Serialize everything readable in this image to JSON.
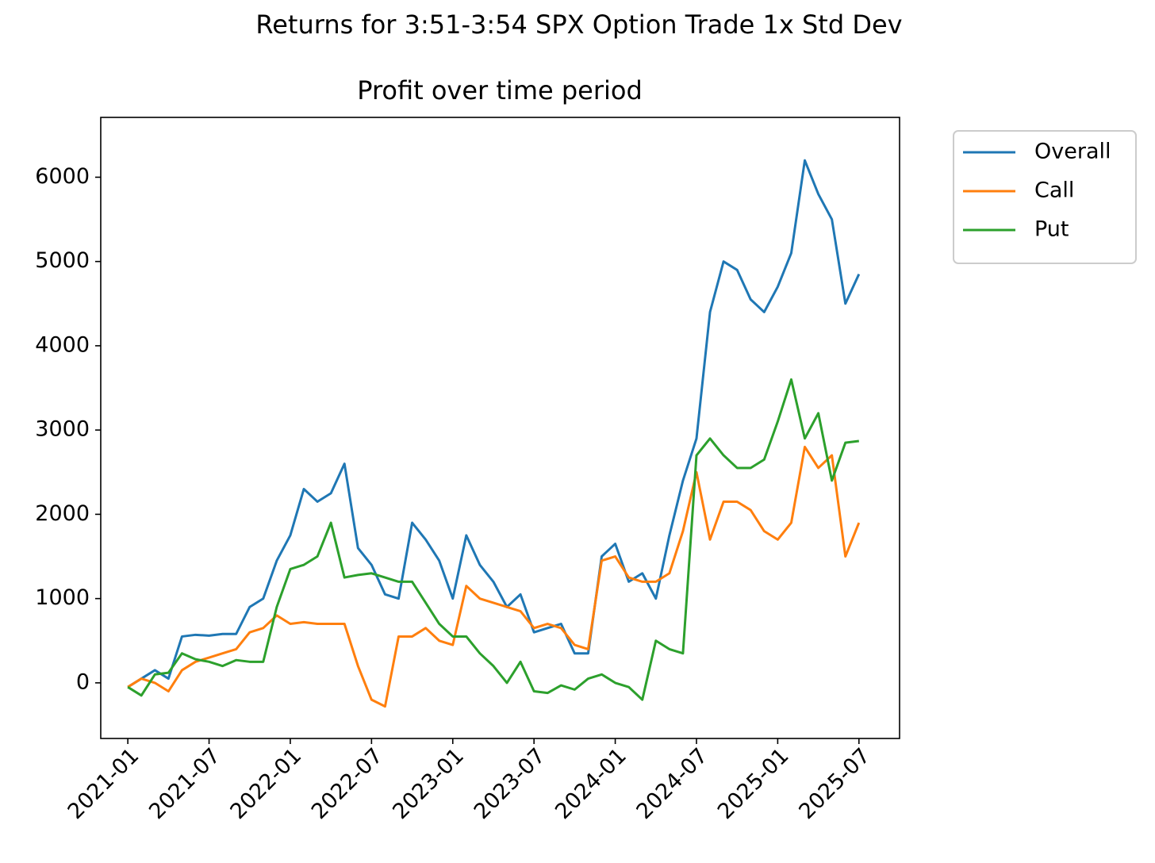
{
  "chart_data": {
    "type": "line",
    "suptitle": "Returns for 3:51-3:54 SPX Option Trade 1x Std Dev",
    "title": "Profit over time period",
    "legend": "outside upper right",
    "grid": false,
    "x": [
      "2021-01",
      "2021-02",
      "2021-03",
      "2021-04",
      "2021-05",
      "2021-06",
      "2021-07",
      "2021-08",
      "2021-09",
      "2021-10",
      "2021-11",
      "2021-12",
      "2022-01",
      "2022-02",
      "2022-03",
      "2022-04",
      "2022-05",
      "2022-06",
      "2022-07",
      "2022-08",
      "2022-09",
      "2022-10",
      "2022-11",
      "2022-12",
      "2023-01",
      "2023-02",
      "2023-03",
      "2023-04",
      "2023-05",
      "2023-06",
      "2023-07",
      "2023-08",
      "2023-09",
      "2023-10",
      "2023-11",
      "2023-12",
      "2024-01",
      "2024-02",
      "2024-03",
      "2024-04",
      "2024-05",
      "2024-06",
      "2024-07",
      "2024-08",
      "2024-09",
      "2024-10",
      "2024-11",
      "2024-12",
      "2025-01",
      "2025-02",
      "2025-03",
      "2025-04",
      "2025-05",
      "2025-06",
      "2025-07"
    ],
    "xlim": [
      "2020-11",
      "2025-10"
    ],
    "xticks": [
      "2021-01",
      "2021-07",
      "2022-01",
      "2022-07",
      "2023-01",
      "2023-07",
      "2024-01",
      "2024-07",
      "2025-01",
      "2025-07"
    ],
    "ylim": [
      -660,
      6710
    ],
    "yticks": [
      0,
      1000,
      2000,
      3000,
      4000,
      5000,
      6000
    ],
    "series": [
      {
        "name": "Overall",
        "color": "#1f77b4",
        "values": [
          -50,
          50,
          150,
          50,
          550,
          570,
          560,
          580,
          580,
          900,
          1000,
          1450,
          1750,
          2300,
          2150,
          2250,
          2600,
          1600,
          1400,
          1050,
          1000,
          1900,
          1700,
          1450,
          1000,
          1750,
          1400,
          1200,
          900,
          1050,
          600,
          650,
          700,
          350,
          350,
          1500,
          1650,
          1200,
          1300,
          1000,
          1750,
          2400,
          2900,
          4400,
          5000,
          4900,
          4550,
          4400,
          4700,
          5100,
          6200,
          5800,
          5500,
          4500,
          4850
        ]
      },
      {
        "name": "Call",
        "color": "#ff7f0e",
        "values": [
          -50,
          50,
          0,
          -100,
          150,
          250,
          300,
          350,
          400,
          600,
          650,
          800,
          700,
          720,
          700,
          700,
          700,
          200,
          -200,
          -280,
          550,
          550,
          650,
          500,
          450,
          1150,
          1000,
          950,
          900,
          850,
          650,
          700,
          650,
          450,
          400,
          1450,
          1500,
          1250,
          1200,
          1200,
          1300,
          1800,
          2500,
          1700,
          2150,
          2150,
          2050,
          1800,
          1700,
          1900,
          2800,
          2550,
          2700,
          1500,
          1900
        ]
      },
      {
        "name": "Put",
        "color": "#2ca02c",
        "values": [
          -50,
          -150,
          100,
          120,
          350,
          280,
          250,
          200,
          270,
          250,
          250,
          900,
          1350,
          1400,
          1500,
          1900,
          1250,
          1280,
          1300,
          1250,
          1200,
          1200,
          950,
          700,
          550,
          550,
          350,
          200,
          0,
          250,
          -100,
          -120,
          -30,
          -80,
          50,
          100,
          0,
          -50,
          -200,
          500,
          400,
          350,
          2700,
          2900,
          2700,
          2550,
          2550,
          2650,
          3100,
          3600,
          2900,
          3200,
          2400,
          2850,
          2870
        ]
      }
    ]
  }
}
